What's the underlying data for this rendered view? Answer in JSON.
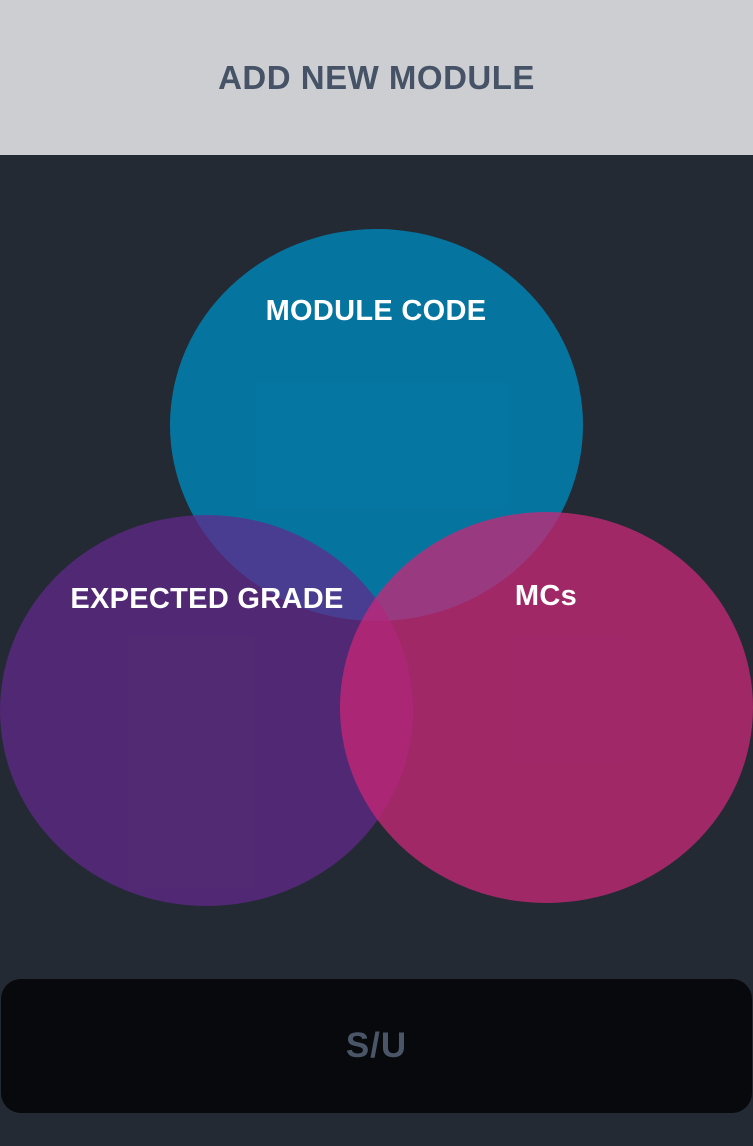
{
  "header": {
    "title": "ADD NEW MODULE"
  },
  "venn": {
    "module_code_label": "MODULE CODE",
    "expected_grade_label": "EXPECTED GRADE",
    "mcs_label": "MCs"
  },
  "footer": {
    "su_label": "S/U"
  },
  "colors": {
    "header_bg": "#cdced1",
    "page_bg": "#232a34",
    "module_code": "#0b79a5",
    "expected_grade": "#4f2d6f",
    "mcs": "#a72d6c",
    "su_button_bg": "#07090c"
  }
}
